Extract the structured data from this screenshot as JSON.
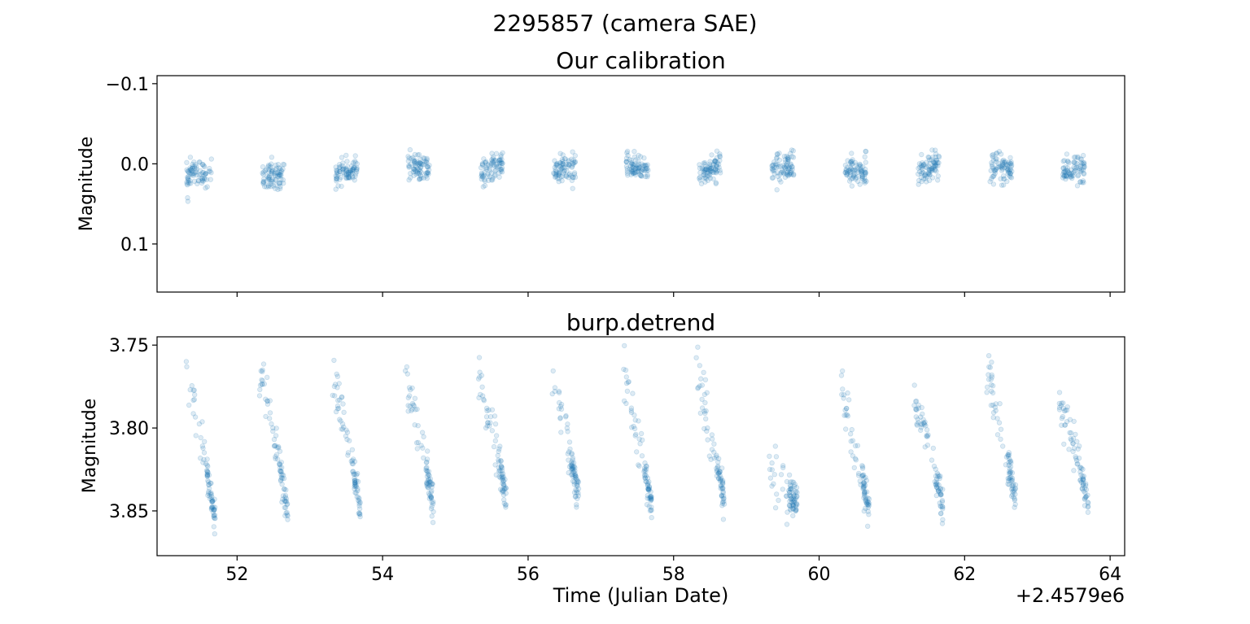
{
  "figure": {
    "suptitle": "2295857 (camera SAE)"
  },
  "chart_data": [
    {
      "type": "scatter",
      "title": "Our calibration",
      "xlabel": "",
      "ylabel": "Magnitude",
      "xlim": [
        50.9,
        64.2
      ],
      "ylim": [
        0.16,
        -0.11
      ],
      "y_inverted": true,
      "yticks": [
        {
          "value": -0.1,
          "label": "−0.1"
        },
        {
          "value": 0.0,
          "label": "0.0"
        },
        {
          "value": 0.1,
          "label": "0.1"
        }
      ],
      "show_xtick_labels": false,
      "marker_color": "#1f77b4",
      "marker_alpha": 0.15,
      "grid": false,
      "series": [
        {
          "visits": [
            {
              "t0": 51.3,
              "t1": 51.65,
              "start": 0.015,
              "end": 0.012
            },
            {
              "t0": 52.35,
              "t1": 52.65,
              "start": 0.018,
              "end": 0.01
            },
            {
              "t0": 53.35,
              "t1": 53.65,
              "start": 0.014,
              "end": 0.006
            },
            {
              "t0": 54.35,
              "t1": 54.65,
              "start": 0.003,
              "end": 0.005
            },
            {
              "t0": 55.35,
              "t1": 55.65,
              "start": 0.01,
              "end": 0.0
            },
            {
              "t0": 56.35,
              "t1": 56.65,
              "start": 0.009,
              "end": 0.005
            },
            {
              "t0": 57.35,
              "t1": 57.65,
              "start": 0.003,
              "end": 0.007
            },
            {
              "t0": 58.35,
              "t1": 58.65,
              "start": 0.012,
              "end": 0.002
            },
            {
              "t0": 59.35,
              "t1": 59.65,
              "start": 0.005,
              "end": 0.003
            },
            {
              "t0": 60.35,
              "t1": 60.65,
              "start": 0.006,
              "end": 0.01
            },
            {
              "t0": 61.35,
              "t1": 61.65,
              "start": 0.008,
              "end": 0.002
            },
            {
              "t0": 62.35,
              "t1": 62.65,
              "start": 0.004,
              "end": 0.007
            },
            {
              "t0": 63.35,
              "t1": 63.65,
              "start": 0.01,
              "end": 0.008
            }
          ]
        }
      ]
    },
    {
      "type": "scatter",
      "title": "burp.detrend",
      "xlabel": "Time (Julian Date)",
      "ylabel": "Magnitude",
      "xlim": [
        50.9,
        64.2
      ],
      "ylim": [
        3.877,
        3.745
      ],
      "y_inverted": true,
      "xticks": [
        {
          "value": 52,
          "label": "52"
        },
        {
          "value": 54,
          "label": "54"
        },
        {
          "value": 56,
          "label": "56"
        },
        {
          "value": 58,
          "label": "58"
        },
        {
          "value": 60,
          "label": "60"
        },
        {
          "value": 62,
          "label": "62"
        },
        {
          "value": 64,
          "label": "64"
        }
      ],
      "x_offset_label": "+2.4579e6",
      "yticks": [
        {
          "value": 3.75,
          "label": "3.75"
        },
        {
          "value": 3.8,
          "label": "3.80"
        },
        {
          "value": 3.85,
          "label": "3.85"
        }
      ],
      "marker_color": "#1f77b4",
      "marker_alpha": 0.15,
      "grid": false,
      "series": [
        {
          "visits": [
            {
              "t0": 51.3,
              "t1": 51.7,
              "start": 3.765,
              "end": 3.858
            },
            {
              "t0": 52.3,
              "t1": 52.7,
              "start": 3.762,
              "end": 3.852
            },
            {
              "t0": 53.3,
              "t1": 53.7,
              "start": 3.765,
              "end": 3.85
            },
            {
              "t0": 54.3,
              "t1": 54.7,
              "start": 3.768,
              "end": 3.848
            },
            {
              "t0": 55.3,
              "t1": 55.7,
              "start": 3.768,
              "end": 3.843
            },
            {
              "t0": 56.3,
              "t1": 56.7,
              "start": 3.768,
              "end": 3.843
            },
            {
              "t0": 57.3,
              "t1": 57.7,
              "start": 3.768,
              "end": 3.848
            },
            {
              "t0": 58.3,
              "t1": 58.7,
              "start": 3.765,
              "end": 3.846
            },
            {
              "t0": 59.3,
              "t1": 59.7,
              "start": 3.825,
              "end": 3.845
            },
            {
              "t0": 60.3,
              "t1": 60.7,
              "start": 3.778,
              "end": 3.852
            },
            {
              "t0": 61.3,
              "t1": 61.7,
              "start": 3.78,
              "end": 3.848
            },
            {
              "t0": 62.3,
              "t1": 62.7,
              "start": 3.768,
              "end": 3.843
            },
            {
              "t0": 63.3,
              "t1": 63.7,
              "start": 3.785,
              "end": 3.846
            }
          ]
        }
      ]
    }
  ]
}
